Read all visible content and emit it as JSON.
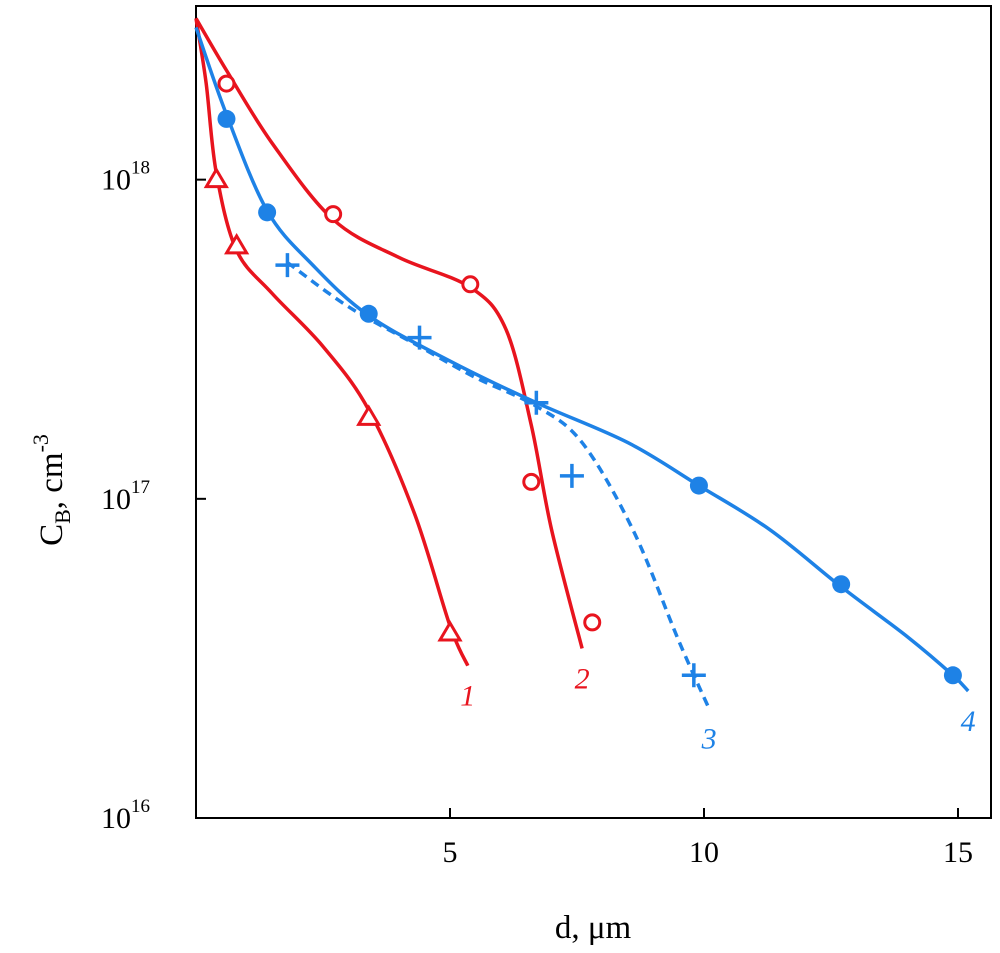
{
  "chart_data": {
    "type": "line",
    "xlabel": "d, μm",
    "ylabel": {
      "main": "C",
      "sub": "B",
      "unit": ", cm",
      "sup": "-3"
    },
    "xlim": [
      0,
      15.5
    ],
    "ylim": [
      10000000000000000,
      3.5e+18
    ],
    "yscale": "log",
    "grid": false,
    "x_ticks": [
      {
        "value": 5,
        "label": "5"
      },
      {
        "value": 10,
        "label": "10"
      },
      {
        "value": 15,
        "label": "15"
      }
    ],
    "y_ticks": [
      {
        "value": 1e+18,
        "base": "10",
        "exp": "18"
      },
      {
        "value": 100000000000000000,
        "base": "10",
        "exp": "17"
      },
      {
        "value": 10000000000000000,
        "base": "10",
        "exp": "16"
      }
    ],
    "series": [
      {
        "label": "1",
        "color": "#e8141e",
        "dash": false,
        "marker": "triangle-open",
        "points": [
          [
            0.4,
            1e+18
          ],
          [
            0.8,
            620000000000000000
          ],
          [
            3.4,
            180000000000000000
          ],
          [
            5.0,
            38000000000000000
          ]
        ],
        "curve": [
          [
            0.0,
            3.2e+18
          ],
          [
            0.2,
            2e+18
          ],
          [
            0.4,
            1.05e+18
          ],
          [
            0.8,
            600000000000000000
          ],
          [
            1.5,
            440000000000000000
          ],
          [
            2.5,
            300000000000000000
          ],
          [
            3.4,
            190000000000000000
          ],
          [
            4.3,
            90000000000000000
          ],
          [
            5.0,
            40000000000000000
          ],
          [
            5.35,
            30000000000000000
          ]
        ]
      },
      {
        "label": "2",
        "color": "#e8141e",
        "dash": false,
        "marker": "circle-open",
        "points": [
          [
            0.6,
            2e+18
          ],
          [
            2.7,
            780000000000000000
          ],
          [
            5.4,
            470000000000000000
          ],
          [
            6.6,
            113000000000000000
          ],
          [
            7.8,
            41000000000000000
          ]
        ],
        "curve": [
          [
            0.0,
            3.2e+18
          ],
          [
            0.6,
            2.2e+18
          ],
          [
            1.5,
            1.3e+18
          ],
          [
            2.7,
            750000000000000000
          ],
          [
            4.0,
            570000000000000000
          ],
          [
            5.4,
            460000000000000000
          ],
          [
            6.1,
            340000000000000000
          ],
          [
            6.6,
            170000000000000000
          ],
          [
            7.0,
            80000000000000000
          ],
          [
            7.6,
            34000000000000000
          ]
        ]
      },
      {
        "label": "3",
        "color": "#1e82e6",
        "dash": true,
        "marker": "plus",
        "points": [
          [
            1.8,
            540000000000000000
          ],
          [
            4.4,
            320000000000000000
          ],
          [
            6.7,
            200000000000000000
          ],
          [
            7.4,
            118000000000000000
          ],
          [
            9.8,
            28000000000000000
          ]
        ],
        "curve": [
          [
            1.8,
            550000000000000000
          ],
          [
            3.0,
            400000000000000000
          ],
          [
            4.4,
            300000000000000000
          ],
          [
            5.5,
            240000000000000000
          ],
          [
            6.7,
            195000000000000000
          ],
          [
            7.6,
            150000000000000000
          ],
          [
            8.6,
            80000000000000000
          ],
          [
            9.5,
            36000000000000000
          ],
          [
            10.1,
            22000000000000000
          ]
        ]
      },
      {
        "label": "4",
        "color": "#1e82e6",
        "dash": false,
        "marker": "circle-filled",
        "points": [
          [
            0.6,
            1.55e+18
          ],
          [
            1.4,
            790000000000000000
          ],
          [
            3.4,
            380000000000000000
          ],
          [
            9.9,
            110000000000000000
          ],
          [
            12.7,
            54000000000000000
          ],
          [
            14.9,
            28000000000000000
          ]
        ],
        "curve": [
          [
            0.0,
            3e+18
          ],
          [
            0.6,
            1.6e+18
          ],
          [
            1.4,
            800000000000000000
          ],
          [
            2.3,
            540000000000000000
          ],
          [
            3.4,
            375000000000000000
          ],
          [
            5.0,
            270000000000000000
          ],
          [
            6.7,
            200000000000000000
          ],
          [
            8.5,
            150000000000000000
          ],
          [
            9.9,
            110000000000000000
          ],
          [
            11.3,
            80000000000000000
          ],
          [
            12.7,
            53000000000000000
          ],
          [
            14.0,
            37000000000000000
          ],
          [
            14.9,
            28000000000000000
          ],
          [
            15.2,
            25000000000000000
          ]
        ]
      }
    ]
  }
}
